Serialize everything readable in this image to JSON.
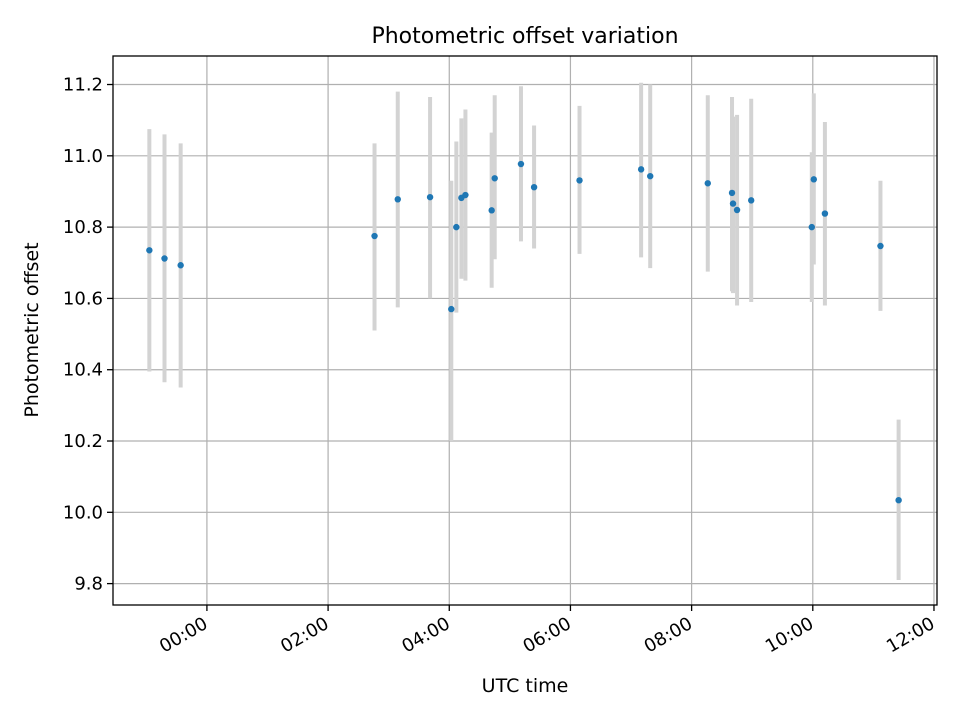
{
  "chart_data": {
    "type": "scatter",
    "title": "Photometric offset variation",
    "xlabel": "UTC time",
    "ylabel": "Photometric offset",
    "xlim": [
      "-01:33",
      "12:03"
    ],
    "ylim": [
      9.74,
      11.28
    ],
    "grid": true,
    "x_ticks": [
      "00:00",
      "02:00",
      "04:00",
      "06:00",
      "08:00",
      "10:00",
      "12:00"
    ],
    "y_ticks": [
      "9.8",
      "10.0",
      "10.2",
      "10.4",
      "10.6",
      "10.8",
      "11.0",
      "11.2"
    ],
    "colors": {
      "marker": "#1f77b4",
      "errorbar": "#d3d3d3"
    },
    "points": [
      {
        "x": "-00:57",
        "y": 10.735,
        "lo": 10.395,
        "hi": 11.075
      },
      {
        "x": "-00:42",
        "y": 10.712,
        "lo": 10.365,
        "hi": 11.06
      },
      {
        "x": "-00:26",
        "y": 10.693,
        "lo": 10.35,
        "hi": 11.035
      },
      {
        "x": "02:46",
        "y": 10.775,
        "lo": 10.51,
        "hi": 11.035
      },
      {
        "x": "03:09",
        "y": 10.878,
        "lo": 10.575,
        "hi": 11.18
      },
      {
        "x": "03:41",
        "y": 10.884,
        "lo": 10.6,
        "hi": 11.165
      },
      {
        "x": "04:02",
        "y": 10.57,
        "lo": 10.2,
        "hi": 10.93
      },
      {
        "x": "04:07",
        "y": 10.8,
        "lo": 10.56,
        "hi": 11.04
      },
      {
        "x": "04:12",
        "y": 10.882,
        "lo": 10.655,
        "hi": 11.105
      },
      {
        "x": "04:16",
        "y": 10.89,
        "lo": 10.65,
        "hi": 11.13
      },
      {
        "x": "04:42",
        "y": 10.847,
        "lo": 10.63,
        "hi": 11.065
      },
      {
        "x": "04:45",
        "y": 10.937,
        "lo": 10.71,
        "hi": 11.17
      },
      {
        "x": "05:11",
        "y": 10.977,
        "lo": 10.76,
        "hi": 11.195
      },
      {
        "x": "05:24",
        "y": 10.912,
        "lo": 10.74,
        "hi": 11.085
      },
      {
        "x": "06:09",
        "y": 10.931,
        "lo": 10.725,
        "hi": 11.14
      },
      {
        "x": "07:10",
        "y": 10.962,
        "lo": 10.715,
        "hi": 11.205
      },
      {
        "x": "07:19",
        "y": 10.943,
        "lo": 10.685,
        "hi": 11.2
      },
      {
        "x": "08:16",
        "y": 10.923,
        "lo": 10.675,
        "hi": 11.17
      },
      {
        "x": "08:40",
        "y": 10.896,
        "lo": 10.62,
        "hi": 11.165
      },
      {
        "x": "08:41",
        "y": 10.866,
        "lo": 10.615,
        "hi": 11.11
      },
      {
        "x": "08:45",
        "y": 10.848,
        "lo": 10.58,
        "hi": 11.115
      },
      {
        "x": "08:59",
        "y": 10.875,
        "lo": 10.59,
        "hi": 11.16
      },
      {
        "x": "09:59",
        "y": 10.8,
        "lo": 10.59,
        "hi": 11.01
      },
      {
        "x": "10:01",
        "y": 10.934,
        "lo": 10.695,
        "hi": 11.175
      },
      {
        "x": "10:12",
        "y": 10.838,
        "lo": 10.58,
        "hi": 11.095
      },
      {
        "x": "11:07",
        "y": 10.747,
        "lo": 10.565,
        "hi": 10.93
      },
      {
        "x": "11:25",
        "y": 10.034,
        "lo": 9.81,
        "hi": 10.26
      }
    ]
  }
}
